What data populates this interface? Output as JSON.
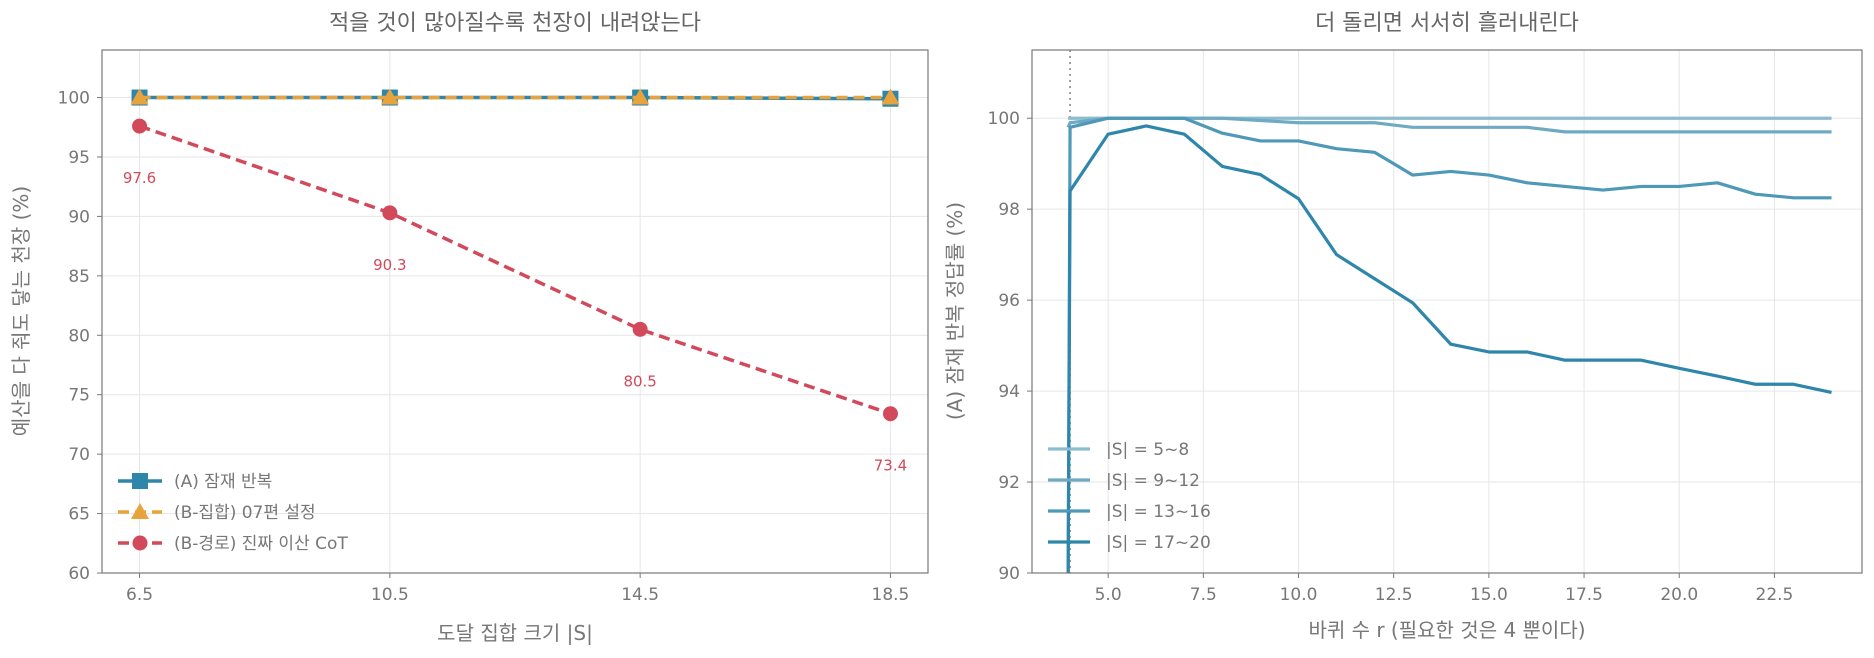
{
  "chart_data": [
    {
      "type": "line",
      "title": "적을 것이 많아질수록 천장이 내려앉는다",
      "xlabel": "도달 집합 크기 |S|",
      "ylabel": "예산을 다 줘도 닿는 천장 (%)",
      "categories": [
        "6.5",
        "10.5",
        "14.5",
        "18.5"
      ],
      "x": [
        6.5,
        10.5,
        14.5,
        18.5
      ],
      "xlim": [
        5.9,
        19.1
      ],
      "ylim": [
        60,
        104
      ],
      "yticks": [
        60,
        65,
        70,
        75,
        80,
        85,
        90,
        95,
        100
      ],
      "grid": true,
      "legend_position": "lower-left",
      "series": [
        {
          "name": "(A) 잠재 반복",
          "values": [
            100,
            100,
            100,
            99.9
          ],
          "color": "#2E86AB",
          "marker": "square",
          "dash": "solid",
          "width": 3.5
        },
        {
          "name": "(B-집합) 07편 설정",
          "values": [
            100,
            100,
            100,
            100
          ],
          "color": "#E8A33D",
          "marker": "triangle",
          "dash": "dashed",
          "width": 3.5
        },
        {
          "name": "(B-경로) 진짜 이산 CoT",
          "values": [
            97.6,
            90.3,
            80.5,
            73.4
          ],
          "color": "#D1495B",
          "marker": "circle",
          "dash": "dashed",
          "width": 3.5,
          "data_labels": [
            "97.6",
            "90.3",
            "80.5",
            "73.4"
          ]
        }
      ]
    },
    {
      "type": "line",
      "title": "더 돌리면 서서히 흘러내린다",
      "xlabel": "바퀴 수 r  (필요한 것은 4 뿐이다)",
      "ylabel": "(A) 잠재 반복 정답률 (%)",
      "xlim": [
        3.0,
        24.8
      ],
      "ylim": [
        90,
        101.5
      ],
      "xticks": [
        5.0,
        7.5,
        10.0,
        12.5,
        15.0,
        17.5,
        20.0,
        22.5
      ],
      "xtick_labels": [
        "5.0",
        "7.5",
        "10.0",
        "12.5",
        "15.0",
        "17.5",
        "20.0",
        "22.5"
      ],
      "yticks": [
        90,
        92,
        94,
        96,
        98,
        100
      ],
      "grid": true,
      "legend_position": "lower-left",
      "reference_line": {
        "x": 4,
        "style": "dotted",
        "color": "#888888"
      },
      "x": [
        3.95,
        4,
        5,
        6,
        7,
        8,
        9,
        10,
        11,
        12,
        13,
        14,
        15,
        16,
        17,
        18,
        19,
        20,
        21,
        22,
        23,
        24
      ],
      "series": [
        {
          "name": "|S| = 5~8",
          "color": "#8DBCCF",
          "values": [
            100,
            100,
            100,
            100,
            100,
            100,
            100,
            100,
            100,
            100,
            100,
            100,
            100,
            100,
            100,
            100,
            100,
            100,
            100,
            100,
            100,
            100
          ]
        },
        {
          "name": "|S| = 9~12",
          "color": "#6FAAC3",
          "values": [
            99.8,
            99.9,
            100,
            100,
            100,
            100,
            99.95,
            99.9,
            99.9,
            99.9,
            99.8,
            99.8,
            99.8,
            99.8,
            99.7,
            99.7,
            99.7,
            99.7,
            99.7,
            99.7,
            99.7,
            99.7
          ]
        },
        {
          "name": "|S| = 13~16",
          "color": "#4E98B8",
          "values": [
            90,
            99.8,
            100,
            100,
            100,
            99.67,
            99.5,
            99.5,
            99.33,
            99.25,
            98.75,
            98.83,
            98.75,
            98.58,
            98.5,
            98.42,
            98.5,
            98.5,
            98.58,
            98.33,
            98.25,
            98.25
          ]
        },
        {
          "name": "|S| = 17~20",
          "color": "#2E86AB",
          "values": [
            90,
            98.4,
            99.65,
            99.83,
            99.65,
            98.94,
            98.76,
            98.23,
            97,
            96.47,
            95.94,
            95.03,
            94.86,
            94.86,
            94.68,
            94.68,
            94.68,
            94.5,
            94.33,
            94.15,
            94.15,
            93.97
          ]
        }
      ]
    }
  ]
}
